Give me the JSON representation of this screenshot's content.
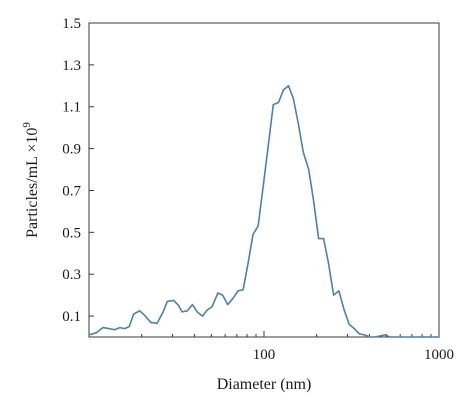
{
  "chart_data": {
    "type": "line",
    "title": "",
    "xlabel": "Diameter (nm)",
    "ylabel": "Particles/mL ×10",
    "ylabel_exponent": "9",
    "x_scale": "log",
    "xlim": [
      10,
      1000
    ],
    "ylim": [
      0,
      1.5
    ],
    "x_ticks": [
      {
        "value": 100,
        "label": "100"
      },
      {
        "value": 1000,
        "label": "1000"
      }
    ],
    "y_ticks": [
      {
        "value": 0.1,
        "label": "0.1"
      },
      {
        "value": 0.3,
        "label": "0.3"
      },
      {
        "value": 0.5,
        "label": "0.5"
      },
      {
        "value": 0.7,
        "label": "0.7"
      },
      {
        "value": 0.9,
        "label": "0.9"
      },
      {
        "value": 1.1,
        "label": "1.1"
      },
      {
        "value": 1.3,
        "label": "1.3"
      },
      {
        "value": 1.5,
        "label": "1.5"
      }
    ],
    "grid": false,
    "legend": "none",
    "series": [
      {
        "color": "#4f7fad",
        "points": [
          [
            10,
            0.01
          ],
          [
            11,
            0.02
          ],
          [
            12,
            0.045
          ],
          [
            13,
            0.04
          ],
          [
            14,
            0.035
          ],
          [
            15,
            0.045
          ],
          [
            16,
            0.04
          ],
          [
            17,
            0.05
          ],
          [
            18,
            0.11
          ],
          [
            19.5,
            0.125
          ],
          [
            21,
            0.1
          ],
          [
            22.5,
            0.07
          ],
          [
            24.5,
            0.065
          ],
          [
            26.5,
            0.12
          ],
          [
            28,
            0.17
          ],
          [
            30.5,
            0.175
          ],
          [
            32.5,
            0.15
          ],
          [
            34,
            0.12
          ],
          [
            36.5,
            0.125
          ],
          [
            39,
            0.155
          ],
          [
            41.5,
            0.12
          ],
          [
            44.5,
            0.1
          ],
          [
            47.5,
            0.13
          ],
          [
            50.5,
            0.145
          ],
          [
            54.5,
            0.21
          ],
          [
            58,
            0.2
          ],
          [
            62,
            0.155
          ],
          [
            66.5,
            0.185
          ],
          [
            71,
            0.22
          ],
          [
            76,
            0.225
          ],
          [
            81,
            0.35
          ],
          [
            86.5,
            0.49
          ],
          [
            92.5,
            0.53
          ],
          [
            99,
            0.72
          ],
          [
            106,
            0.92
          ],
          [
            113,
            1.11
          ],
          [
            121,
            1.12
          ],
          [
            129,
            1.18
          ],
          [
            138,
            1.2
          ],
          [
            147,
            1.14
          ],
          [
            157,
            1.02
          ],
          [
            168,
            0.88
          ],
          [
            180,
            0.8
          ],
          [
            192,
            0.65
          ],
          [
            205,
            0.47
          ],
          [
            219,
            0.47
          ],
          [
            234,
            0.35
          ],
          [
            250,
            0.2
          ],
          [
            268,
            0.22
          ],
          [
            287,
            0.13
          ],
          [
            307,
            0.06
          ],
          [
            328,
            0.04
          ],
          [
            351,
            0.015
          ],
          [
            375,
            0.01
          ],
          [
            401,
            0.0
          ],
          [
            429,
            0.0
          ],
          [
            459,
            0.005
          ],
          [
            491,
            0.01
          ],
          [
            525,
            0.0
          ],
          [
            561,
            0.0
          ],
          [
            600,
            0.0
          ],
          [
            700,
            0.0
          ],
          [
            800,
            0.0
          ],
          [
            900,
            0.0
          ],
          [
            1000,
            0.0
          ]
        ]
      }
    ]
  }
}
